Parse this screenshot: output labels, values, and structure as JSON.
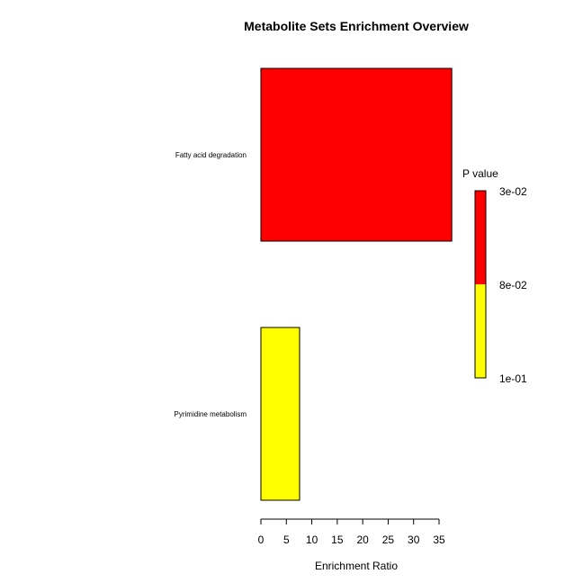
{
  "chart_data": {
    "type": "bar",
    "orientation": "horizontal",
    "title": "Metabolite Sets Enrichment Overview",
    "xlabel": "Enrichment Ratio",
    "ylabel": "",
    "categories": [
      "Fatty acid degradation",
      "Pyrimidine metabolism"
    ],
    "values": [
      37.5,
      7.6
    ],
    "bar_colors": [
      "#ff0000",
      "#ffff00"
    ],
    "xlim": [
      0,
      35
    ],
    "xticks": [
      0,
      5,
      10,
      15,
      20,
      25,
      30,
      35
    ],
    "grid": false,
    "legend": {
      "title": "P value",
      "placement": "right",
      "colors": [
        "#ff0000",
        "#ffff00"
      ],
      "labels": [
        "3e-02",
        "8e-02",
        "1e-01"
      ]
    }
  }
}
